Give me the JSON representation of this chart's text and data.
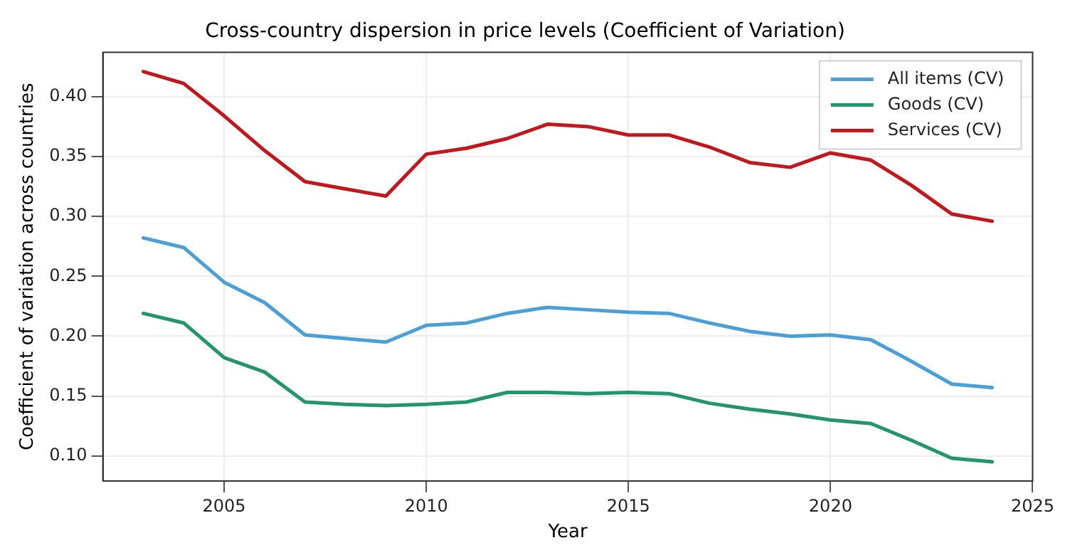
{
  "chart_data": {
    "type": "line",
    "title": "Cross-country dispersion in price levels (Coefficient of Variation)",
    "xlabel": "Year",
    "ylabel": "Coefficient of variation across countries",
    "x": [
      2003,
      2004,
      2005,
      2006,
      2007,
      2008,
      2009,
      2010,
      2011,
      2012,
      2013,
      2014,
      2015,
      2016,
      2017,
      2018,
      2019,
      2020,
      2021,
      2022,
      2023,
      2024
    ],
    "series": [
      {
        "name": "All items (CV)",
        "color": "#4a9fd6",
        "values": [
          0.282,
          0.274,
          0.245,
          0.228,
          0.201,
          0.198,
          0.195,
          0.209,
          0.211,
          0.219,
          0.224,
          0.222,
          0.22,
          0.219,
          0.211,
          0.204,
          0.2,
          0.201,
          0.197,
          0.179,
          0.16,
          0.157
        ]
      },
      {
        "name": "Goods (CV)",
        "color": "#22956b",
        "values": [
          0.219,
          0.211,
          0.182,
          0.17,
          0.145,
          0.143,
          0.142,
          0.143,
          0.145,
          0.153,
          0.153,
          0.152,
          0.153,
          0.152,
          0.144,
          0.139,
          0.135,
          0.13,
          0.127,
          0.113,
          0.098,
          0.095
        ]
      },
      {
        "name": "Services (CV)",
        "color": "#c0181c",
        "values": [
          0.421,
          0.411,
          0.384,
          0.355,
          0.329,
          0.323,
          0.317,
          0.352,
          0.357,
          0.365,
          0.377,
          0.375,
          0.368,
          0.368,
          0.358,
          0.345,
          0.341,
          0.353,
          0.347,
          0.326,
          0.302,
          0.296
        ]
      }
    ],
    "xlim": [
      2002,
      2025
    ],
    "xticks": [
      2005,
      2010,
      2015,
      2020,
      2025
    ],
    "ylim": [
      0.079,
      0.437
    ],
    "yticks": [
      {
        "value": 0.1,
        "label": "0.10"
      },
      {
        "value": 0.15,
        "label": "0.15"
      },
      {
        "value": 0.2,
        "label": "0.20"
      },
      {
        "value": 0.25,
        "label": "0.25"
      },
      {
        "value": 0.3,
        "label": "0.30"
      },
      {
        "value": 0.35,
        "label": "0.35"
      },
      {
        "value": 0.4,
        "label": "0.40"
      }
    ],
    "grid": true,
    "legend": "top right",
    "marker": "none",
    "line_style": "solid"
  }
}
